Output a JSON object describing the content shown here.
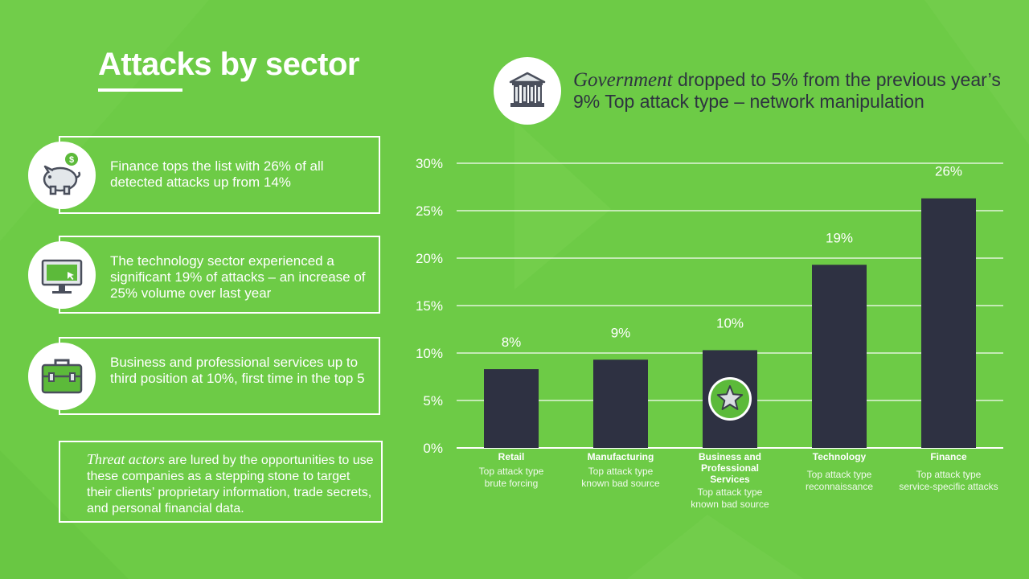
{
  "page": {
    "title": "Attacks by sector",
    "colors": {
      "background": "#6dcb46",
      "bar": "#2e3142",
      "text_dark": "#2e3440",
      "accent_green": "#5cba3a"
    }
  },
  "cards": [
    {
      "icon": "piggy-bank-icon",
      "text": "Finance tops the list with 26% of all detected attacks up from 14%"
    },
    {
      "icon": "monitor-icon",
      "text": "The technology sector experienced a significant 19% of attacks – an increase of 25% volume over last year"
    },
    {
      "icon": "briefcase-icon",
      "text": "Business and professional services up to third position at 10%, first time in the top 5"
    }
  ],
  "note": {
    "emphasis": "Threat actors",
    "text": " are lured by the opportunities to use these companies as a stepping stone to target their clients’ proprietary information, trade secrets, and personal financial data."
  },
  "government": {
    "icon": "bank-building-icon",
    "emphasis": "Government",
    "text": " dropped to 5% from the previous year’s 9% Top attack type – network manipulation"
  },
  "chart_data": {
    "type": "bar",
    "title": "",
    "xlabel": "",
    "ylabel": "",
    "ylim": [
      0,
      30
    ],
    "grid": true,
    "yticks": [
      0,
      5,
      10,
      15,
      20,
      25,
      30
    ],
    "ytick_labels": [
      "0%",
      "5%",
      "10%",
      "15%",
      "20%",
      "25%",
      "30%"
    ],
    "categories": [
      "Retail",
      "Manufacturing",
      "Business and Professional Services",
      "Technology",
      "Finance"
    ],
    "category_lines": [
      [
        "Retail"
      ],
      [
        "Manufacturing"
      ],
      [
        "Business and",
        "Professional",
        "Services"
      ],
      [
        "Technology"
      ],
      [
        "Finance"
      ]
    ],
    "values": [
      8.3,
      9.3,
      10.3,
      19.3,
      26.3
    ],
    "value_labels": [
      "8%",
      "9%",
      "10%",
      "19%",
      "26%"
    ],
    "subtitle_lines": [
      [
        "Top attack type",
        "brute forcing"
      ],
      [
        "Top attack type",
        "known bad source"
      ],
      [
        "Top attack type",
        "known bad source"
      ],
      [
        "Top attack type",
        "reconnaissance"
      ],
      [
        "Top attack type",
        "service-specific attacks"
      ]
    ],
    "highlight_index": 2,
    "highlight_icon": "star-icon"
  }
}
